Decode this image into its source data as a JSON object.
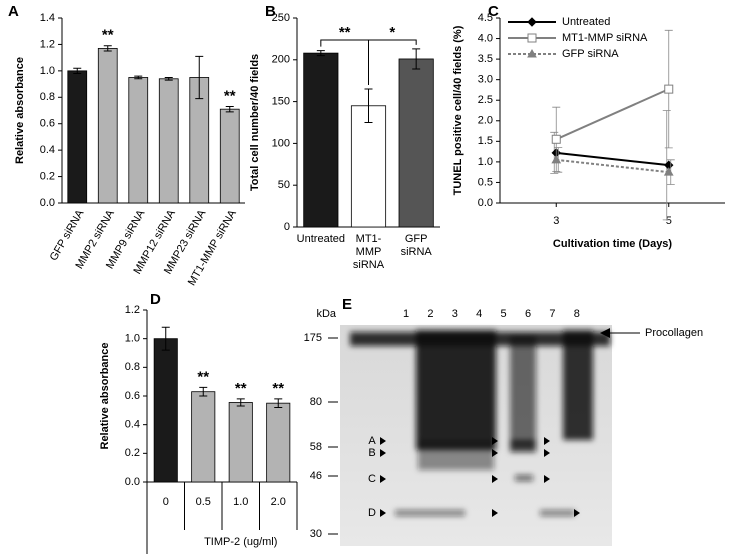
{
  "chart_data": [
    {
      "type": "bar",
      "panel": "A",
      "ylabel": "Relative absorbance",
      "categories": [
        "GFP siRNA",
        "MMP2 siRNA",
        "MMP9 siRNA",
        "MMP12 siRNA",
        "MMP23 siRNA",
        "MT1-MMP siRNA"
      ],
      "values": [
        1.0,
        1.17,
        0.95,
        0.94,
        0.95,
        0.71
      ],
      "errors": [
        0.02,
        0.02,
        0.01,
        0.01,
        0.16,
        0.02
      ],
      "value_annotations": [
        null,
        "**",
        null,
        null,
        null,
        "**"
      ],
      "colors": [
        "#1a1a1a",
        "#b3b3b3",
        "#b3b3b3",
        "#b3b3b3",
        "#b3b3b3",
        "#b3b3b3"
      ],
      "ylim": [
        0,
        1.4
      ],
      "yticks": [
        {
          "value": 0,
          "label": "0.0"
        },
        {
          "value": 0.2,
          "label": "0.2"
        },
        {
          "value": 0.4,
          "label": "0.4"
        },
        {
          "value": 0.6,
          "label": "0.6"
        },
        {
          "value": 0.8,
          "label": "0.8"
        },
        {
          "value": 1,
          "label": "1.0"
        },
        {
          "value": 1.2,
          "label": "1.2"
        },
        {
          "value": 1.4,
          "label": "1.4"
        }
      ]
    },
    {
      "type": "bar",
      "panel": "B",
      "ylabel": "Total cell number/40 fields",
      "categories": [
        "Untreated",
        "MT1-MMP siRNA",
        "GFP siRNA"
      ],
      "values": [
        208,
        145,
        201
      ],
      "errors": [
        3,
        20,
        12
      ],
      "significance": [
        "**",
        "*"
      ],
      "colors": [
        "#1a1a1a",
        "#ffffff",
        "#555555"
      ],
      "ylim": [
        0,
        250
      ],
      "yticks": [
        0,
        50,
        100,
        150,
        200,
        250
      ]
    },
    {
      "type": "line",
      "panel": "C",
      "ylabel": "TUNEL positive cell/40 fields (%)",
      "xlabel": "Cultivation time (Days)",
      "x": [
        3,
        5
      ],
      "xlim": [
        2,
        6
      ],
      "xticks": [
        3,
        5
      ],
      "legend": "top-left",
      "series": [
        {
          "name": "Untreated",
          "color": "#000000",
          "marker": "diamond",
          "dash": false,
          "values": [
            1.22,
            0.92
          ],
          "errors": [
            0.5,
            1.33
          ]
        },
        {
          "name": "MT1-MMP siRNA",
          "color": "#808080",
          "marker": "square",
          "dash": false,
          "values": [
            1.55,
            2.77
          ],
          "errors": [
            0.78,
            1.43
          ]
        },
        {
          "name": "GFP siRNA",
          "color": "#808080",
          "marker": "triangle",
          "dash": true,
          "values": [
            1.05,
            0.75
          ],
          "errors": [
            0.3,
            0.3
          ]
        }
      ],
      "ylim": [
        0,
        4.5
      ],
      "yticks": [
        {
          "value": 0,
          "label": "0.0"
        },
        {
          "value": 0.5,
          "label": "0.5"
        },
        {
          "value": 1,
          "label": "1.0"
        },
        {
          "value": 1.5,
          "label": "1.5"
        },
        {
          "value": 2,
          "label": "2.0"
        },
        {
          "value": 2.5,
          "label": "2.5"
        },
        {
          "value": 3,
          "label": "3.0"
        },
        {
          "value": 3.5,
          "label": "3.5"
        },
        {
          "value": 4,
          "label": "4.0"
        },
        {
          "value": 4.5,
          "label": "4.5"
        }
      ]
    },
    {
      "type": "bar",
      "panel": "D",
      "ylabel": "Relative absorbance",
      "xlabel": "TIMP-2 (ug/ml)",
      "categories": [
        "0",
        "0.5",
        "1.0",
        "2.0"
      ],
      "values": [
        1.0,
        0.63,
        0.555,
        0.55
      ],
      "errors": [
        0.08,
        0.03,
        0.025,
        0.03
      ],
      "value_annotations": [
        null,
        "**",
        "**",
        "**"
      ],
      "colors": [
        "#1a1a1a",
        "#b3b3b3",
        "#b3b3b3",
        "#b3b3b3"
      ],
      "ylim": [
        0,
        1.2
      ],
      "yticks": [
        {
          "value": 0,
          "label": "0.0"
        },
        {
          "value": 0.2,
          "label": "0.2"
        },
        {
          "value": 0.4,
          "label": "0.4"
        },
        {
          "value": 0.6,
          "label": "0.6"
        },
        {
          "value": 0.8,
          "label": "0.8"
        },
        {
          "value": 1,
          "label": "1.0"
        },
        {
          "value": 1.2,
          "label": "1.2"
        }
      ]
    }
  ],
  "gel": {
    "panel": "E",
    "unit": "kDa",
    "lanes": [
      "1",
      "2",
      "3",
      "4",
      "5",
      "6",
      "7",
      "8"
    ],
    "markers": [
      "175",
      "80",
      "58",
      "46",
      "30"
    ],
    "arrow_label": "Procollagen",
    "bands": [
      "A",
      "B",
      "C",
      "D"
    ]
  }
}
